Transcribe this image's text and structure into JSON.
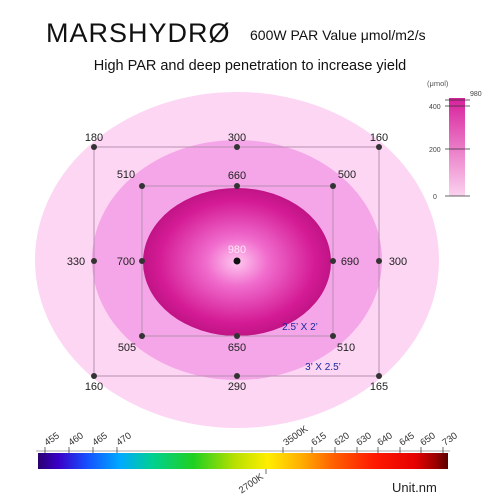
{
  "header": {
    "brand": "MARSHYDRØ",
    "title": "600W PAR Value μmol/m2/s",
    "subtitle": "High PAR and deep penetration to increase yield"
  },
  "par_map": {
    "center": "980",
    "inner_ring": {
      "top_left": "510",
      "top": "660",
      "top_right": "500",
      "left": "700",
      "right": "690",
      "bottom_left": "505",
      "bottom": "650",
      "bottom_right": "510"
    },
    "outer_ring": {
      "top_left": "180",
      "top": "300",
      "top_right": "160",
      "left": "330",
      "right": "300",
      "bottom_left": "160",
      "bottom": "290",
      "bottom_right": "165"
    },
    "inner_area_label": "2.5’ X 2’",
    "outer_area_label": "3’ X 2.5’",
    "colors": {
      "outer": "#fbd0f1",
      "middle": "#f39ee6",
      "center": "#d81f9a",
      "label_blue": "#1a2aa0"
    }
  },
  "scale_bar": {
    "unit": "(μmol)",
    "max_label": "980",
    "ticks": [
      "400",
      "200",
      "0"
    ]
  },
  "spectrum": {
    "top_labels": [
      "455",
      "460",
      "465",
      "470",
      "3500K",
      "615",
      "620",
      "630",
      "640",
      "645",
      "650",
      "730"
    ],
    "bottom_label": "2700K",
    "unit": "Unit.nm"
  }
}
